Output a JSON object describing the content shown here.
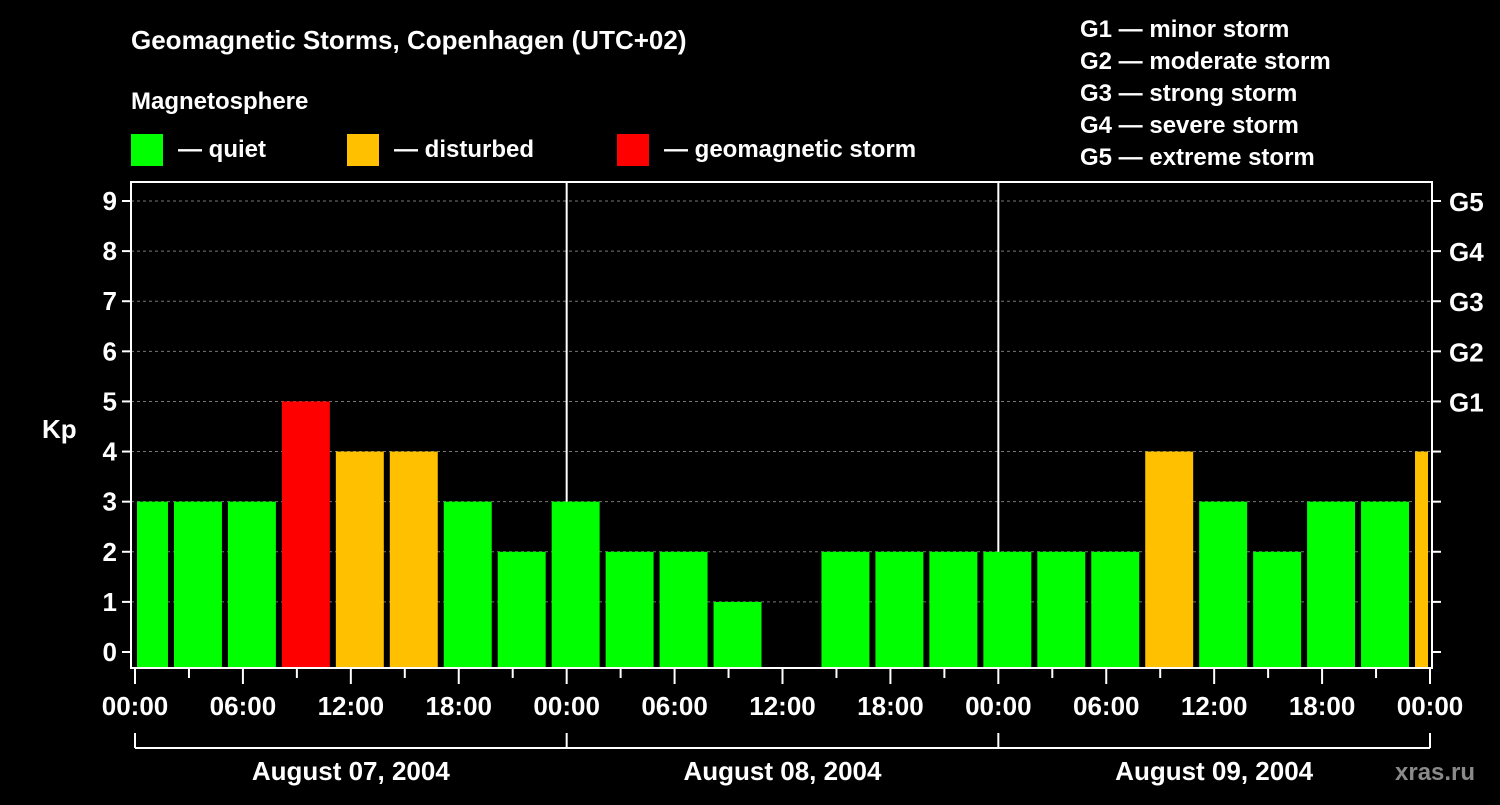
{
  "chart_data": {
    "type": "bar",
    "title": "Geomagnetic Storms, Copenhagen (UTC+02)",
    "subtitle": "Magnetosphere",
    "legend": [
      {
        "label": "— quiet",
        "color": "#00ff00"
      },
      {
        "label": "— disturbed",
        "color": "#ffc000"
      },
      {
        "label": "— geomagnetic storm",
        "color": "#ff0000"
      }
    ],
    "storm_scale": [
      "G1 — minor storm",
      "G2 — moderate storm",
      "G3 — strong storm",
      "G4 — severe storm",
      "G5 — extreme storm"
    ],
    "ylabel": "Kp",
    "ylim": [
      0,
      9
    ],
    "yticks": [
      "0",
      "1",
      "2",
      "3",
      "4",
      "5",
      "6",
      "7",
      "8",
      "9"
    ],
    "right_ticks": [
      {
        "kp": 5,
        "label": "G1"
      },
      {
        "kp": 6,
        "label": "G2"
      },
      {
        "kp": 7,
        "label": "G3"
      },
      {
        "kp": 8,
        "label": "G4"
      },
      {
        "kp": 9,
        "label": "G5"
      }
    ],
    "xlim_hours": [
      0,
      72
    ],
    "xticks": [
      "00:00",
      "06:00",
      "12:00",
      "18:00",
      "00:00",
      "06:00",
      "12:00",
      "18:00",
      "00:00",
      "06:00",
      "12:00",
      "18:00",
      "00:00"
    ],
    "days": [
      "August 07, 2004",
      "August 08, 2004",
      "August 09, 2004"
    ],
    "bars": [
      {
        "start": -1,
        "kp": 3
      },
      {
        "start": 2,
        "kp": 3
      },
      {
        "start": 5,
        "kp": 3
      },
      {
        "start": 8,
        "kp": 5
      },
      {
        "start": 11,
        "kp": 4
      },
      {
        "start": 14,
        "kp": 4
      },
      {
        "start": 17,
        "kp": 3
      },
      {
        "start": 20,
        "kp": 2
      },
      {
        "start": 23,
        "kp": 3
      },
      {
        "start": 26,
        "kp": 2
      },
      {
        "start": 29,
        "kp": 2
      },
      {
        "start": 32,
        "kp": 1
      },
      {
        "start": 35,
        "kp": 0
      },
      {
        "start": 38,
        "kp": 2
      },
      {
        "start": 41,
        "kp": 2
      },
      {
        "start": 44,
        "kp": 2
      },
      {
        "start": 47,
        "kp": 2
      },
      {
        "start": 50,
        "kp": 2
      },
      {
        "start": 53,
        "kp": 2
      },
      {
        "start": 56,
        "kp": 4
      },
      {
        "start": 59,
        "kp": 3
      },
      {
        "start": 62,
        "kp": 2
      },
      {
        "start": 65,
        "kp": 3
      },
      {
        "start": 68,
        "kp": 3
      },
      {
        "start": 71,
        "kp": 4
      }
    ],
    "grid": true
  },
  "watermark": "xras.ru"
}
